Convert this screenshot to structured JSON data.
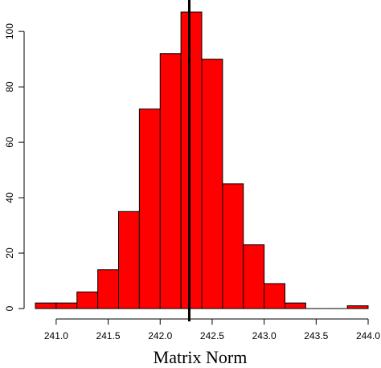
{
  "chart_data": {
    "type": "bar",
    "subtype": "histogram",
    "title": "",
    "xlabel": "Matrix Norm",
    "ylabel": "",
    "bin_edges": [
      240.8,
      241.0,
      241.2,
      241.4,
      241.6,
      241.8,
      242.0,
      242.2,
      242.4,
      242.6,
      242.8,
      243.0,
      243.2,
      243.4,
      243.6,
      243.8,
      244.0
    ],
    "values": [
      2,
      2,
      6,
      14,
      35,
      72,
      92,
      107,
      90,
      45,
      23,
      9,
      2,
      0,
      0,
      1
    ],
    "xlim": [
      240.8,
      244.0
    ],
    "ylim": [
      0,
      107
    ],
    "x_ticks": [
      "241.0",
      "241.5",
      "242.0",
      "242.5",
      "243.0",
      "243.5",
      "244.0"
    ],
    "y_ticks": [
      "0",
      "20",
      "40",
      "60",
      "80",
      "100"
    ],
    "vertical_line": {
      "x": 242.28
    },
    "bar_color": "#ff0000",
    "line_color": "#000000",
    "grid": false
  }
}
